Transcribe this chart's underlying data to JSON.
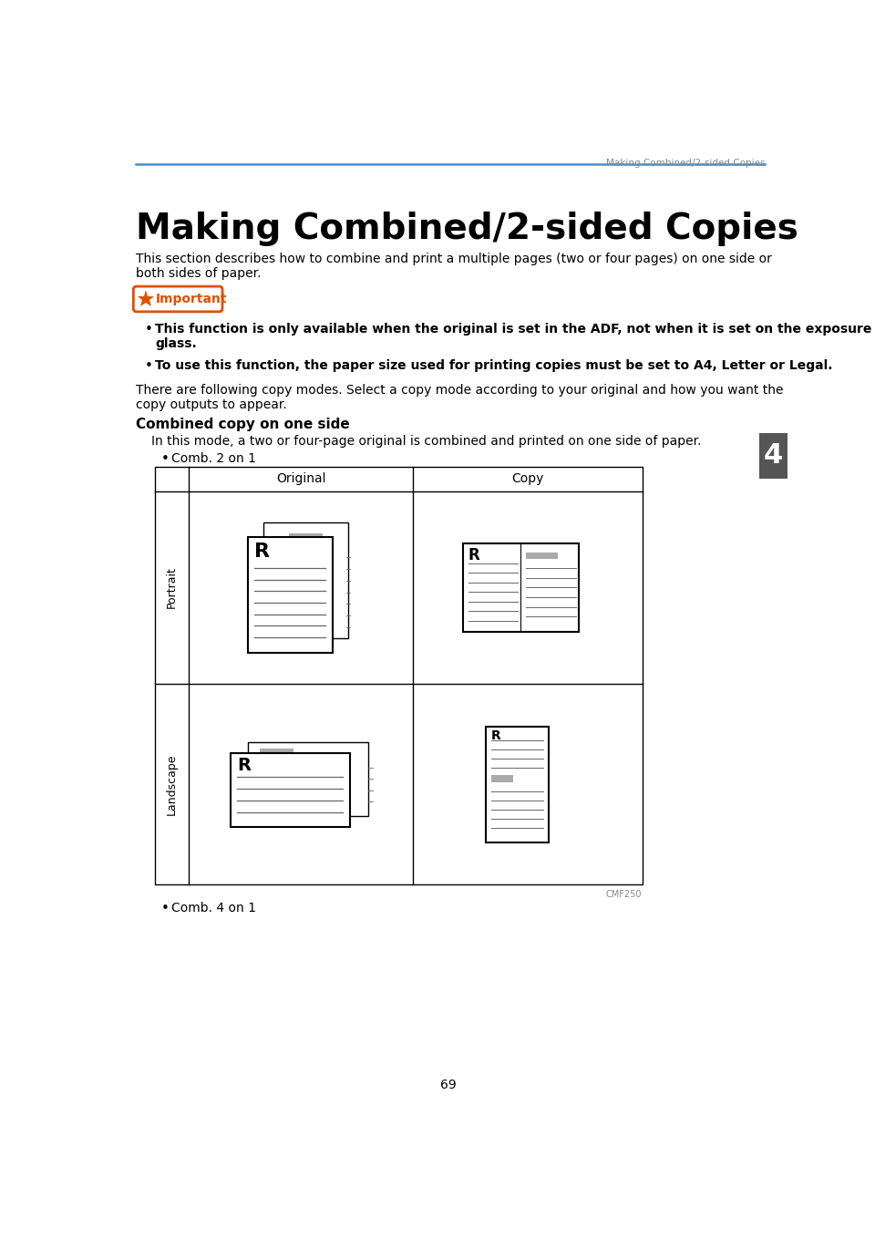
{
  "page_title_header": "Making Combined/2-sided Copies",
  "main_title": "Making Combined/2-sided Copies",
  "body_text1": "This section describes how to combine and print a multiple pages (two or four pages) on one side or\nboth sides of paper.",
  "important_label": "Important",
  "bullet1_part1": "This function is only available when the original is set in the ADF, not when it is set on the exposure",
  "bullet1_part2": "glass.",
  "bullet2": "To use this function, the paper size used for printing copies must be set to A4, Letter or Legal.",
  "para1": "There are following copy modes. Select a copy mode according to your original and how you want the\ncopy outputs to appear.",
  "section_title": "Combined copy on one side",
  "section_desc": "In this mode, a two or four-page original is combined and printed on one side of paper.",
  "bullet3": "Comb. 2 on 1",
  "col1_header": "Original",
  "col2_header": "Copy",
  "row1_label": "Portrait",
  "row2_label": "Landscape",
  "cmf_label": "CMF250",
  "bullet4": "Comb. 4 on 1",
  "page_number": "69",
  "tab_number": "4",
  "header_line_color": "#4a90c4",
  "tab_color": "#555555",
  "important_border_color": "#e05000",
  "important_star_color": "#e05000",
  "background_color": "#ffffff",
  "text_color": "#000000",
  "gray_color": "#888888",
  "line_gray": "#666666",
  "table_border_color": "#000000",
  "shadow_gray": "#aaaaaa"
}
